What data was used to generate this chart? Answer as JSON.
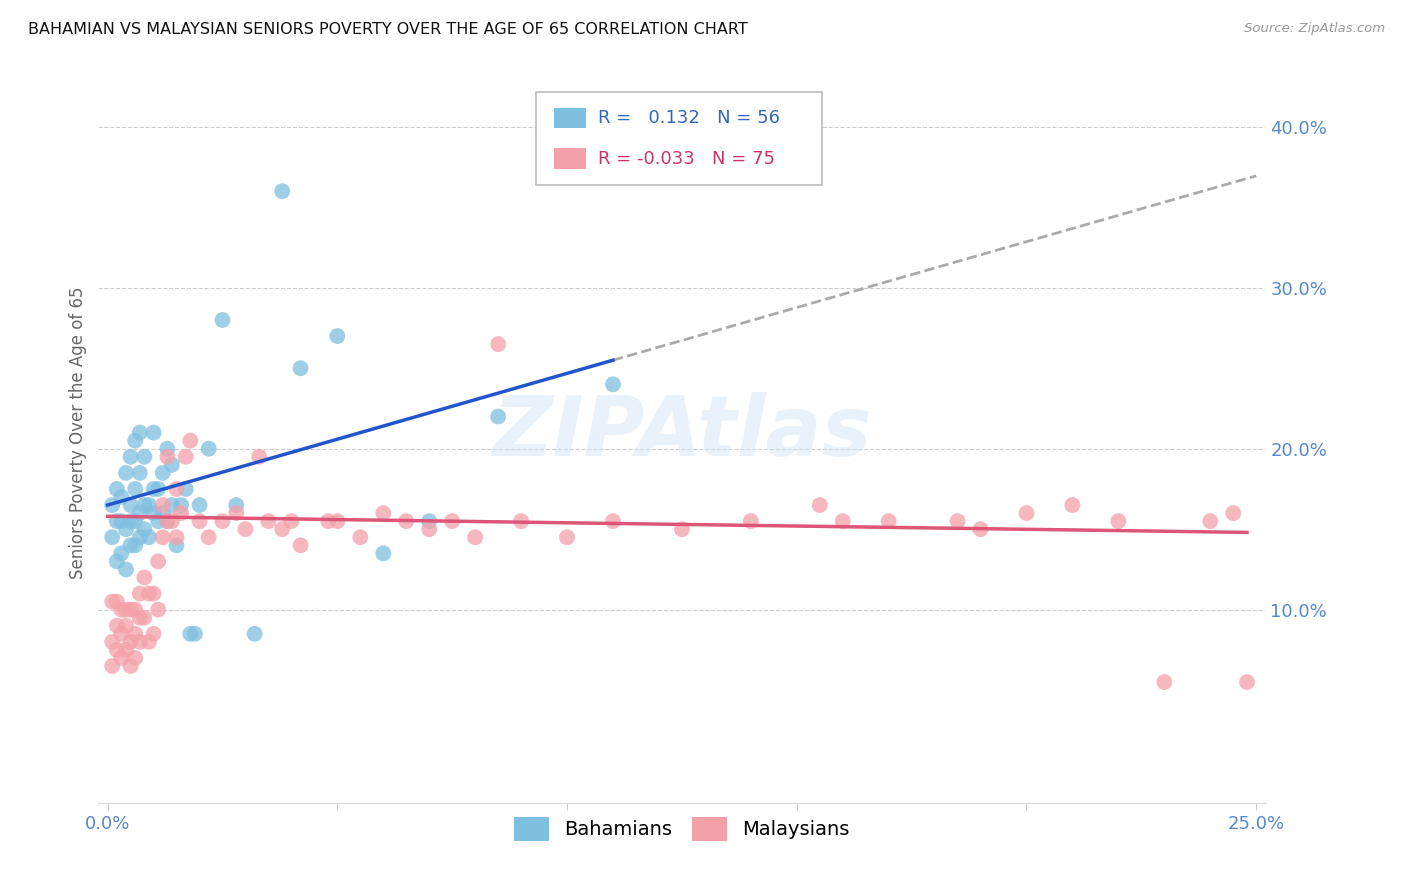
{
  "title": "BAHAMIAN VS MALAYSIAN SENIORS POVERTY OVER THE AGE OF 65 CORRELATION CHART",
  "source": "Source: ZipAtlas.com",
  "ylabel": "Seniors Poverty Over the Age of 65",
  "xlim": [
    -0.002,
    0.252
  ],
  "ylim": [
    -0.02,
    0.44
  ],
  "yticks": [
    0.1,
    0.2,
    0.3,
    0.4
  ],
  "ytick_labels": [
    "10.0%",
    "20.0%",
    "30.0%",
    "40.0%"
  ],
  "xticks": [
    0.0,
    0.05,
    0.1,
    0.15,
    0.2,
    0.25
  ],
  "xtick_labels": [
    "0.0%",
    "",
    "",
    "",
    "",
    "25.0%"
  ],
  "bahamian_R": 0.132,
  "bahamian_N": 56,
  "malaysian_R": -0.033,
  "malaysian_N": 75,
  "bahamian_color": "#7fbfdf",
  "malaysian_color": "#f4a0a8",
  "trend_blue": "#2255cc",
  "trend_pink": "#dd5577",
  "trend_gray": "#aaaaaa",
  "watermark": "ZIPAtlas",
  "background_color": "#ffffff",
  "grid_color": "#cccccc",
  "axis_label_color": "#5588cc",
  "ylabel_color": "#666666",
  "title_color": "#111111",
  "bahamians_x": [
    0.001,
    0.001,
    0.002,
    0.002,
    0.002,
    0.003,
    0.003,
    0.003,
    0.004,
    0.004,
    0.004,
    0.005,
    0.005,
    0.005,
    0.005,
    0.006,
    0.006,
    0.006,
    0.006,
    0.007,
    0.007,
    0.007,
    0.007,
    0.008,
    0.008,
    0.008,
    0.009,
    0.009,
    0.01,
    0.01,
    0.01,
    0.011,
    0.011,
    0.012,
    0.012,
    0.013,
    0.013,
    0.014,
    0.014,
    0.015,
    0.016,
    0.017,
    0.018,
    0.019,
    0.02,
    0.022,
    0.025,
    0.028,
    0.032,
    0.038,
    0.042,
    0.05,
    0.06,
    0.07,
    0.085,
    0.11
  ],
  "bahamians_y": [
    0.165,
    0.145,
    0.13,
    0.155,
    0.175,
    0.135,
    0.155,
    0.17,
    0.125,
    0.15,
    0.185,
    0.14,
    0.155,
    0.165,
    0.195,
    0.14,
    0.155,
    0.175,
    0.205,
    0.145,
    0.16,
    0.185,
    0.21,
    0.15,
    0.165,
    0.195,
    0.145,
    0.165,
    0.16,
    0.175,
    0.21,
    0.155,
    0.175,
    0.16,
    0.185,
    0.155,
    0.2,
    0.165,
    0.19,
    0.14,
    0.165,
    0.175,
    0.085,
    0.085,
    0.165,
    0.2,
    0.28,
    0.165,
    0.085,
    0.36,
    0.25,
    0.27,
    0.135,
    0.155,
    0.22,
    0.24
  ],
  "malaysians_x": [
    0.001,
    0.001,
    0.001,
    0.002,
    0.002,
    0.002,
    0.003,
    0.003,
    0.003,
    0.004,
    0.004,
    0.004,
    0.005,
    0.005,
    0.005,
    0.006,
    0.006,
    0.006,
    0.007,
    0.007,
    0.007,
    0.008,
    0.008,
    0.009,
    0.009,
    0.01,
    0.01,
    0.011,
    0.011,
    0.012,
    0.012,
    0.013,
    0.013,
    0.014,
    0.015,
    0.015,
    0.016,
    0.017,
    0.018,
    0.02,
    0.022,
    0.025,
    0.028,
    0.03,
    0.033,
    0.035,
    0.038,
    0.04,
    0.042,
    0.048,
    0.05,
    0.055,
    0.06,
    0.065,
    0.07,
    0.075,
    0.08,
    0.085,
    0.09,
    0.1,
    0.11,
    0.125,
    0.14,
    0.155,
    0.17,
    0.185,
    0.2,
    0.22,
    0.24,
    0.245,
    0.16,
    0.19,
    0.21,
    0.23,
    0.248
  ],
  "malaysians_y": [
    0.065,
    0.08,
    0.105,
    0.075,
    0.09,
    0.105,
    0.07,
    0.085,
    0.1,
    0.075,
    0.09,
    0.1,
    0.065,
    0.08,
    0.1,
    0.07,
    0.085,
    0.1,
    0.08,
    0.095,
    0.11,
    0.095,
    0.12,
    0.08,
    0.11,
    0.085,
    0.11,
    0.1,
    0.13,
    0.145,
    0.165,
    0.155,
    0.195,
    0.155,
    0.145,
    0.175,
    0.16,
    0.195,
    0.205,
    0.155,
    0.145,
    0.155,
    0.16,
    0.15,
    0.195,
    0.155,
    0.15,
    0.155,
    0.14,
    0.155,
    0.155,
    0.145,
    0.16,
    0.155,
    0.15,
    0.155,
    0.145,
    0.265,
    0.155,
    0.145,
    0.155,
    0.15,
    0.155,
    0.165,
    0.155,
    0.155,
    0.16,
    0.155,
    0.155,
    0.16,
    0.155,
    0.15,
    0.165,
    0.055,
    0.055
  ]
}
